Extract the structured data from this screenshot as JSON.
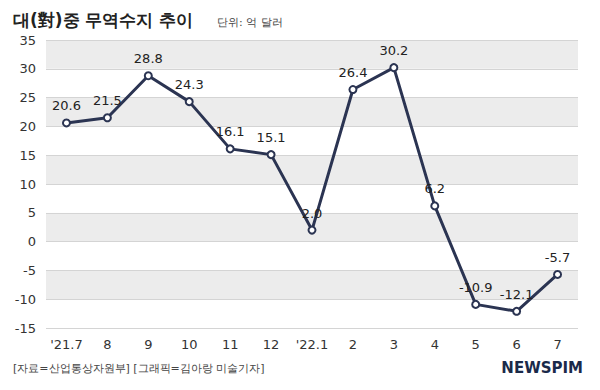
{
  "chart_data": {
    "type": "line",
    "title": "대(對)중 무역수지 추이",
    "subtitle": "단위: 억 달러",
    "annotations": [
      "[자료=산업통상자원부] [그래픽=김아랑 미술기자]",
      "NEWSPIM"
    ],
    "categories": [
      "'21.7",
      "8",
      "9",
      "10",
      "11",
      "12",
      "'22.1",
      "2",
      "3",
      "4",
      "5",
      "6",
      "7"
    ],
    "values": [
      20.6,
      21.5,
      28.8,
      24.3,
      16.1,
      15.1,
      2.0,
      26.4,
      30.2,
      6.2,
      -10.9,
      -12.1,
      -5.7
    ],
    "value_labels": [
      "20.6",
      "21.5",
      "28.8",
      "24.3",
      "16.1",
      "15.1",
      "2.0",
      "26.4",
      "30.2",
      "6.2",
      "-10.9",
      "-12.1",
      "-5.7"
    ],
    "color": "#2b3452",
    "marker": "circle",
    "line_style": "solid",
    "data_labels": true,
    "ylim": [
      -15,
      35
    ],
    "yticks": [
      -15,
      -10,
      -5,
      0,
      5,
      10,
      15,
      20,
      25,
      30,
      35
    ],
    "grid": true
  }
}
